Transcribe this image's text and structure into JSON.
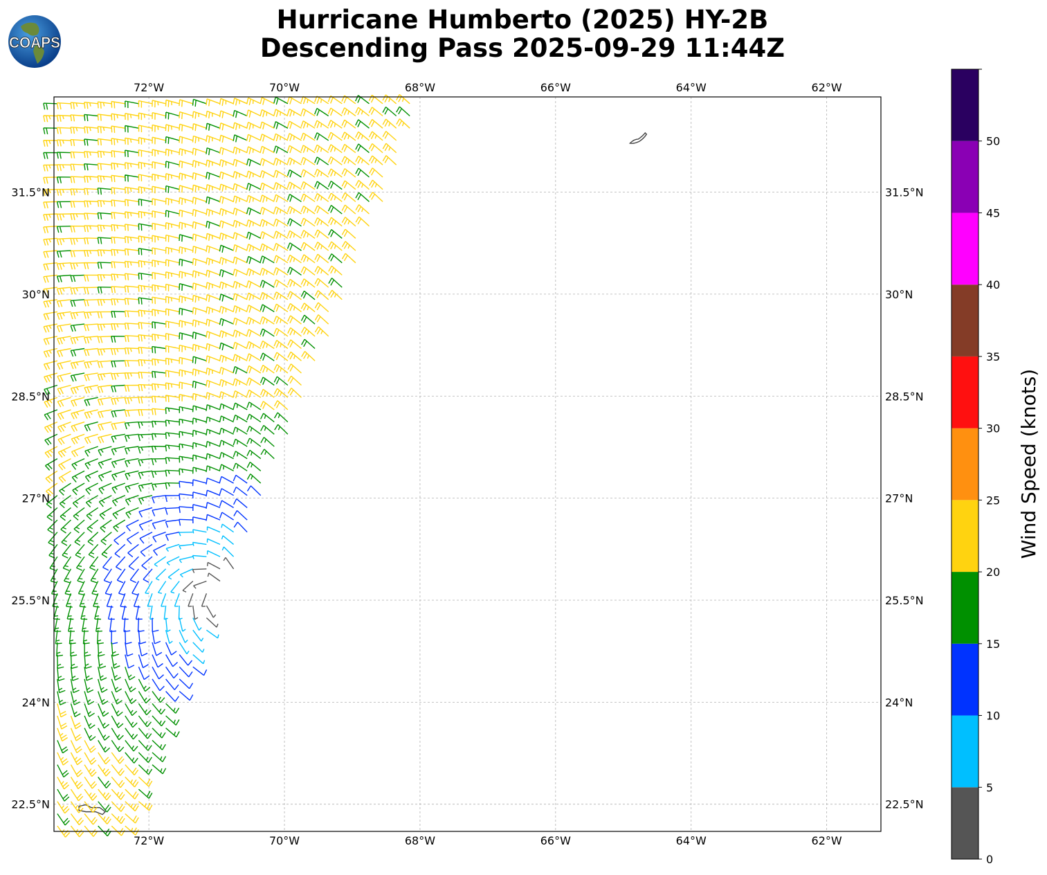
{
  "logo": {
    "text": "COAPS"
  },
  "title": {
    "line1": "Hurricane Humberto (2025) HY-2B",
    "line2": "Descending Pass 2025-09-29 11:44Z"
  },
  "map": {
    "extent": {
      "lon_min": -73.4,
      "lon_max": -61.2,
      "lat_min": 22.1,
      "lat_max": 32.9
    },
    "lon_ticks": [
      {
        "value": -72,
        "label": "72°W"
      },
      {
        "value": -70,
        "label": "70°W"
      },
      {
        "value": -68,
        "label": "68°W"
      },
      {
        "value": -66,
        "label": "66°W"
      },
      {
        "value": -64,
        "label": "64°W"
      },
      {
        "value": -62,
        "label": "62°W"
      }
    ],
    "lat_ticks": [
      {
        "value": 31.5,
        "label": "31.5°N"
      },
      {
        "value": 30.0,
        "label": "30°N"
      },
      {
        "value": 28.5,
        "label": "28.5°N"
      },
      {
        "value": 27.0,
        "label": "27°N"
      },
      {
        "value": 25.5,
        "label": "25.5°N"
      },
      {
        "value": 24.0,
        "label": "24°N"
      },
      {
        "value": 22.5,
        "label": "22.5°N"
      }
    ],
    "gridlines": true,
    "storm_center": {
      "lon": -71.0,
      "lat": 25.6
    },
    "land_features": [
      {
        "name": "Bermuda",
        "lon": -64.78,
        "lat": 32.3
      },
      {
        "name": "Turks and Caicos",
        "lon": -72.95,
        "lat": 22.45
      }
    ]
  },
  "colorbar": {
    "label": "Wind Speed (knots)",
    "bins": [
      {
        "min": 0,
        "max": 5,
        "color": "#555555"
      },
      {
        "min": 5,
        "max": 10,
        "color": "#00bfff"
      },
      {
        "min": 10,
        "max": 15,
        "color": "#0033ff"
      },
      {
        "min": 15,
        "max": 20,
        "color": "#009000"
      },
      {
        "min": 20,
        "max": 25,
        "color": "#ffd310"
      },
      {
        "min": 25,
        "max": 30,
        "color": "#ff9010"
      },
      {
        "min": 30,
        "max": 35,
        "color": "#ff1010"
      },
      {
        "min": 35,
        "max": 40,
        "color": "#843c27"
      },
      {
        "min": 40,
        "max": 45,
        "color": "#ff00ff"
      },
      {
        "min": 45,
        "max": 50,
        "color": "#8a00b4"
      },
      {
        "min": 50,
        "max": 55,
        "color": "#2a0060"
      }
    ],
    "tick_labels": [
      "0",
      "5",
      "10",
      "15",
      "20",
      "25",
      "30",
      "35",
      "40",
      "45",
      "50"
    ]
  }
}
